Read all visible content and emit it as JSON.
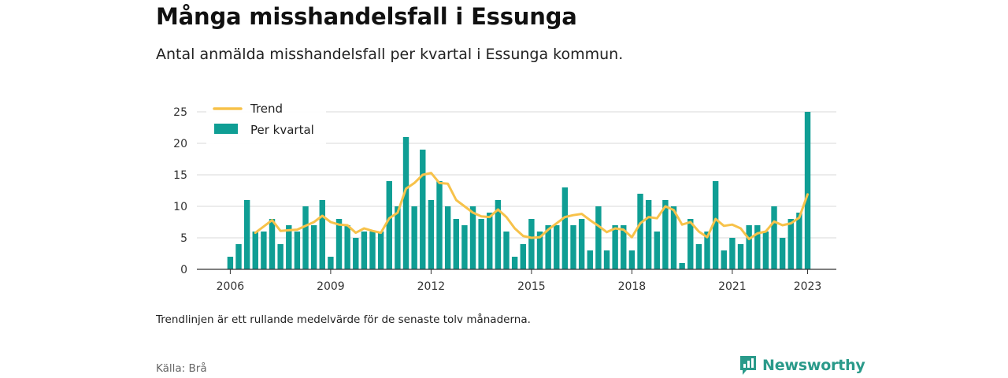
{
  "header": {
    "title": "Många misshandelsfall i Essunga",
    "subtitle": "Antal anmälda misshandelsfall per kvartal i Essunga kommun."
  },
  "footer": {
    "note": "Trendlinjen är ett rullande medelvärde för de senaste tolv månaderna.",
    "source": "Källa: Brå",
    "brand": "Newsworthy"
  },
  "colors": {
    "bar": "#0f9e94",
    "trend": "#f7c24a",
    "grid": "#d9d9d9",
    "axis": "#333333",
    "brand": "#2a9a8a"
  },
  "chart_data": {
    "type": "bar",
    "x_start": "2006 Q1",
    "frequency": "quarterly",
    "xticks": [
      "2006",
      "2009",
      "2012",
      "2015",
      "2018",
      "2021",
      "2023"
    ],
    "yticks": [
      "0",
      "5",
      "10",
      "15",
      "20",
      "25"
    ],
    "ylim": [
      0,
      25
    ],
    "grid": true,
    "legend_position": "top-left",
    "legend": [
      "Trend",
      "Per kvartal"
    ],
    "series": [
      {
        "name": "Per kvartal",
        "type": "bar",
        "values": [
          2,
          4,
          11,
          6,
          6,
          8,
          4,
          7,
          6,
          10,
          7,
          11,
          2,
          8,
          7,
          5,
          6,
          6,
          6,
          14,
          10,
          21,
          10,
          19,
          11,
          14,
          10,
          8,
          7,
          10,
          8,
          9,
          11,
          6,
          2,
          4,
          8,
          6,
          7,
          7,
          13,
          7,
          8,
          3,
          10,
          3,
          7,
          7,
          3,
          12,
          11,
          6,
          11,
          10,
          1,
          8,
          4,
          6,
          14,
          3,
          5,
          4,
          7,
          7,
          6,
          10,
          5,
          8,
          9,
          25
        ]
      },
      {
        "name": "Trend",
        "type": "line",
        "values": [
          null,
          null,
          null,
          5.8,
          6.8,
          7.8,
          6.1,
          6.2,
          6.3,
          6.9,
          7.5,
          8.5,
          7.5,
          7.1,
          7.0,
          5.8,
          6.5,
          6.1,
          5.8,
          8.1,
          9.0,
          12.8,
          13.7,
          15.0,
          15.3,
          13.7,
          13.6,
          11.0,
          10.0,
          9.0,
          8.4,
          8.3,
          9.5,
          8.3,
          6.5,
          5.3,
          5.0,
          5.1,
          6.3,
          7.3,
          8.3,
          8.6,
          8.8,
          7.8,
          6.9,
          5.9,
          6.5,
          6.3,
          5.1,
          7.3,
          8.3,
          8.1,
          10.0,
          9.4,
          7.1,
          7.5,
          6.0,
          5.1,
          8.0,
          6.9,
          7.1,
          6.5,
          4.8,
          5.7,
          6.0,
          7.6,
          7.0,
          7.3,
          8.2,
          11.9
        ]
      }
    ]
  }
}
